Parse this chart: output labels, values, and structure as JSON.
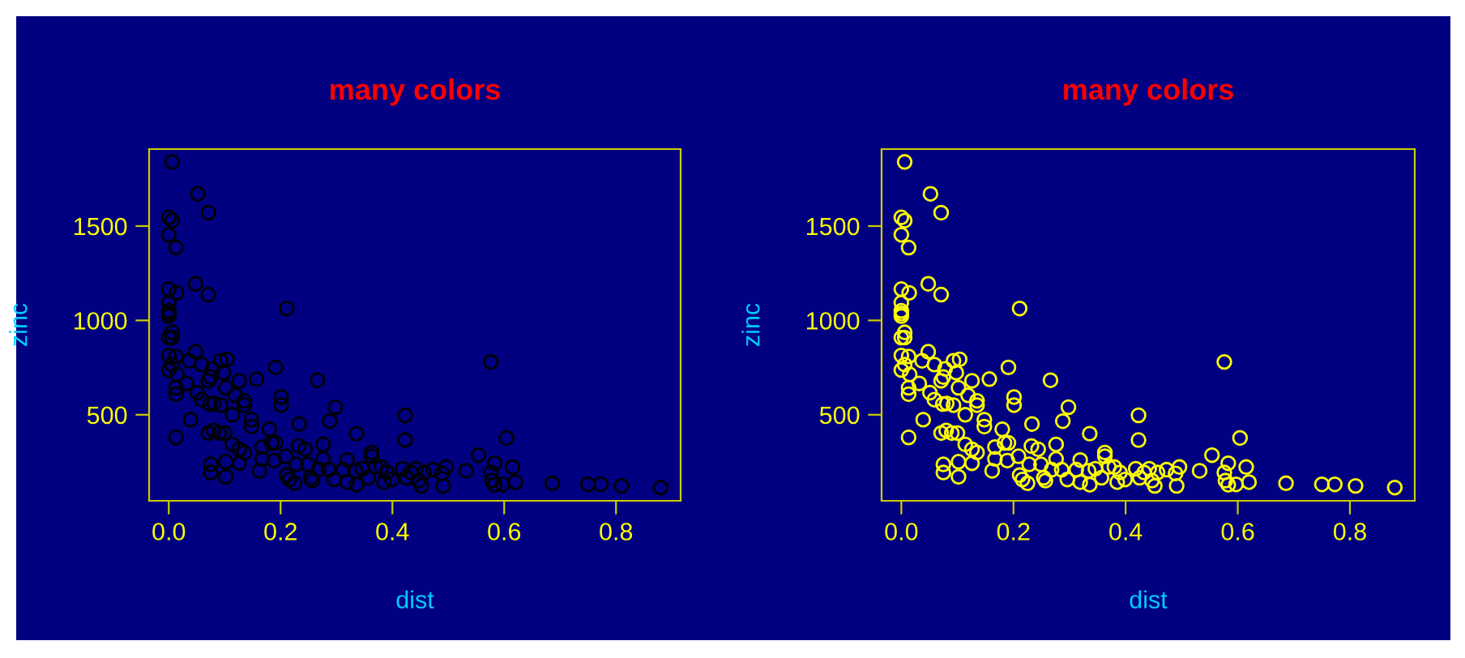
{
  "chart_data": [
    {
      "type": "scatter",
      "title": "many colors",
      "xlabel": "dist",
      "ylabel": "zinc",
      "marker": "circle",
      "grid": false,
      "xlim": [
        -0.0352,
        0.9156
      ],
      "ylim": [
        44,
        1908
      ],
      "xticks": [
        {
          "value": 0,
          "label": "0.0"
        },
        0.2,
        0.4,
        0.6,
        0.8
      ],
      "yticks": [
        500,
        1000,
        1500
      ],
      "x": [
        0.006,
        0.052,
        0.071,
        0.0,
        0.006,
        0.0,
        0.013,
        0.048,
        0.071,
        0.0,
        0.014,
        0.0,
        0.0,
        0.0,
        0.0,
        0.211,
        0.006,
        0.0,
        0.006,
        0.048,
        0.0,
        0.013,
        0.0,
        0.006,
        0.015,
        0.037,
        0.059,
        0.093,
        0.104,
        0.078,
        0.075,
        0.098,
        0.071,
        0.032,
        0.013,
        0.013,
        0.051,
        0.059,
        0.074,
        0.093,
        0.081,
        0.102,
        0.119,
        0.126,
        0.135,
        0.135,
        0.114,
        0.157,
        0.191,
        0.201,
        0.201,
        0.266,
        0.298,
        0.288,
        0.233,
        0.148,
        0.148,
        0.039,
        0.013,
        0.071,
        0.08,
        0.09,
        0.1,
        0.114,
        0.126,
        0.135,
        0.18,
        0.184,
        0.191,
        0.167,
        0.167,
        0.162,
        0.189,
        0.209,
        0.232,
        0.244,
        0.276,
        0.336,
        0.423,
        0.423,
        0.604,
        0.576,
        0.554,
        0.075,
        0.075,
        0.102,
        0.126,
        0.102,
        0.211,
        0.216,
        0.225,
        0.228,
        0.249,
        0.254,
        0.257,
        0.268,
        0.276,
        0.286,
        0.296,
        0.312,
        0.319,
        0.319,
        0.334,
        0.336,
        0.346,
        0.357,
        0.363,
        0.363,
        0.37,
        0.38,
        0.385,
        0.39,
        0.399,
        0.418,
        0.425,
        0.433,
        0.442,
        0.447,
        0.452,
        0.457,
        0.473,
        0.489,
        0.491,
        0.496,
        0.532,
        0.576,
        0.583,
        0.578,
        0.583,
        0.597,
        0.615,
        0.62,
        0.686,
        0.75,
        0.773,
        0.81,
        0.88
      ],
      "series": [
        {
          "color": "#000000",
          "values": [
            1840,
            1671,
            1571,
            1546,
            1529,
            1454,
            1386,
            1194,
            1137,
            1166,
            1146,
            1094,
            1051,
            1023,
            1037,
            1063,
            937,
            909,
            909,
            834,
            814,
            809,
            737,
            766,
            714,
            786,
            766,
            786,
            794,
            743,
            700,
            723,
            680,
            666,
            643,
            609,
            617,
            580,
            557,
            551,
            560,
            643,
            603,
            680,
            574,
            551,
            500,
            689,
            751,
            594,
            551,
            683,
            540,
            466,
            451,
            474,
            437,
            474,
            380,
            403,
            417,
            403,
            403,
            343,
            317,
            300,
            423,
            351,
            351,
            329,
            266,
            203,
            257,
            280,
            334,
            317,
            343,
            400,
            497,
            366,
            377,
            780,
            286,
            237,
            194,
            251,
            243,
            171,
            180,
            157,
            137,
            237,
            237,
            166,
            151,
            209,
            266,
            209,
            157,
            209,
            260,
            143,
            203,
            129,
            214,
            166,
            300,
            280,
            223,
            223,
            143,
            194,
            157,
            214,
            166,
            194,
            214,
            151,
            123,
            194,
            209,
            189,
            123,
            223,
            203,
            194,
            243,
            151,
            129,
            131,
            223,
            143,
            137,
            131,
            131,
            123,
            114
          ]
        }
      ]
    },
    {
      "type": "scatter",
      "title": "many colors",
      "xlabel": "dist",
      "ylabel": "zinc",
      "marker": "circle",
      "grid": false,
      "xlim": [
        -0.0352,
        0.9156
      ],
      "ylim": [
        44,
        1908
      ],
      "xticks": [
        {
          "value": 0,
          "label": "0.0"
        },
        0.2,
        0.4,
        0.6,
        0.8
      ],
      "yticks": [
        500,
        1000,
        1500
      ],
      "x": [
        0.006,
        0.052,
        0.071,
        0.0,
        0.006,
        0.0,
        0.013,
        0.048,
        0.071,
        0.0,
        0.014,
        0.0,
        0.0,
        0.0,
        0.0,
        0.211,
        0.006,
        0.0,
        0.006,
        0.048,
        0.0,
        0.013,
        0.0,
        0.006,
        0.015,
        0.037,
        0.059,
        0.093,
        0.104,
        0.078,
        0.075,
        0.098,
        0.071,
        0.032,
        0.013,
        0.013,
        0.051,
        0.059,
        0.074,
        0.093,
        0.081,
        0.102,
        0.119,
        0.126,
        0.135,
        0.135,
        0.114,
        0.157,
        0.191,
        0.201,
        0.201,
        0.266,
        0.298,
        0.288,
        0.233,
        0.148,
        0.148,
        0.039,
        0.013,
        0.071,
        0.08,
        0.09,
        0.1,
        0.114,
        0.126,
        0.135,
        0.18,
        0.184,
        0.191,
        0.167,
        0.167,
        0.162,
        0.189,
        0.209,
        0.232,
        0.244,
        0.276,
        0.336,
        0.423,
        0.423,
        0.604,
        0.576,
        0.554,
        0.075,
        0.075,
        0.102,
        0.126,
        0.102,
        0.211,
        0.216,
        0.225,
        0.228,
        0.249,
        0.254,
        0.257,
        0.268,
        0.276,
        0.286,
        0.296,
        0.312,
        0.319,
        0.319,
        0.334,
        0.336,
        0.346,
        0.357,
        0.363,
        0.363,
        0.37,
        0.38,
        0.385,
        0.39,
        0.399,
        0.418,
        0.425,
        0.433,
        0.442,
        0.447,
        0.452,
        0.457,
        0.473,
        0.489,
        0.491,
        0.496,
        0.532,
        0.576,
        0.583,
        0.578,
        0.583,
        0.597,
        0.615,
        0.62,
        0.686,
        0.75,
        0.773,
        0.81,
        0.88
      ],
      "series": [
        {
          "color": "#ffff00",
          "values": [
            1840,
            1671,
            1571,
            1546,
            1529,
            1454,
            1386,
            1194,
            1137,
            1166,
            1146,
            1094,
            1051,
            1023,
            1037,
            1063,
            937,
            909,
            909,
            834,
            814,
            809,
            737,
            766,
            714,
            786,
            766,
            786,
            794,
            743,
            700,
            723,
            680,
            666,
            643,
            609,
            617,
            580,
            557,
            551,
            560,
            643,
            603,
            680,
            574,
            551,
            500,
            689,
            751,
            594,
            551,
            683,
            540,
            466,
            451,
            474,
            437,
            474,
            380,
            403,
            417,
            403,
            403,
            343,
            317,
            300,
            423,
            351,
            351,
            329,
            266,
            203,
            257,
            280,
            334,
            317,
            343,
            400,
            497,
            366,
            377,
            780,
            286,
            237,
            194,
            251,
            243,
            171,
            180,
            157,
            137,
            237,
            237,
            166,
            151,
            209,
            266,
            209,
            157,
            209,
            260,
            143,
            203,
            129,
            214,
            166,
            300,
            280,
            223,
            223,
            143,
            194,
            157,
            214,
            166,
            194,
            214,
            151,
            123,
            194,
            209,
            189,
            123,
            223,
            203,
            194,
            243,
            151,
            129,
            131,
            223,
            143,
            137,
            131,
            131,
            123,
            114
          ]
        }
      ]
    }
  ]
}
